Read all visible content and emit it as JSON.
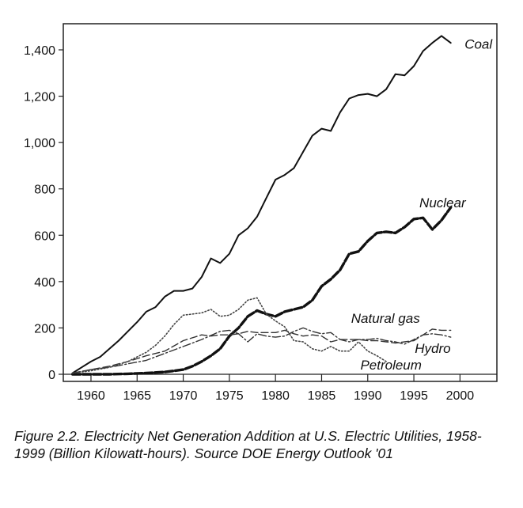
{
  "caption": "Figure 2.2. Electricity Net Generation Addition at U.S. Electric Utilities, 1958-1999 (Billion Kilowatt-hours). Source DOE Energy Outlook '01",
  "chart_data": {
    "type": "line",
    "title": "",
    "xlabel": "",
    "ylabel": "",
    "xlim": [
      1957,
      2004
    ],
    "ylim": [
      0,
      1500
    ],
    "x_ticks": [
      1960,
      1965,
      1970,
      1975,
      1980,
      1985,
      1990,
      1995,
      2000
    ],
    "y_ticks": [
      0,
      200,
      400,
      600,
      800,
      1000,
      1200,
      1400
    ],
    "x_tick_labels": [
      "1960",
      "1965",
      "1970",
      "1975",
      "1980",
      "1985",
      "1990",
      "1995",
      "2000"
    ],
    "y_tick_labels": [
      "0",
      "200",
      "400",
      "600",
      "800",
      "1,000",
      "1,200",
      "1,400"
    ],
    "grid": false,
    "legend": "none (series labeled directly on chart)",
    "series": [
      {
        "name": "Coal",
        "style": "solid",
        "x": [
          1958,
          1959,
          1960,
          1961,
          1962,
          1963,
          1964,
          1965,
          1966,
          1967,
          1968,
          1969,
          1970,
          1971,
          1972,
          1973,
          1974,
          1975,
          1976,
          1977,
          1978,
          1979,
          1980,
          1981,
          1982,
          1983,
          1984,
          1985,
          1986,
          1987,
          1988,
          1989,
          1990,
          1991,
          1992,
          1993,
          1994,
          1995,
          1996,
          1997,
          1998,
          1999
        ],
        "values": [
          5,
          30,
          55,
          75,
          110,
          145,
          185,
          225,
          270,
          290,
          335,
          360,
          360,
          370,
          420,
          500,
          480,
          520,
          600,
          630,
          680,
          760,
          840,
          860,
          890,
          960,
          1030,
          1060,
          1050,
          1130,
          1190,
          1205,
          1210,
          1200,
          1230,
          1295,
          1290,
          1330,
          1395,
          1430,
          1460,
          1430
        ]
      },
      {
        "name": "Nuclear",
        "style": "dashed-bold",
        "x": [
          1958,
          1960,
          1962,
          1964,
          1966,
          1968,
          1969,
          1970,
          1971,
          1972,
          1973,
          1974,
          1975,
          1976,
          1977,
          1978,
          1979,
          1980,
          1981,
          1982,
          1983,
          1984,
          1985,
          1986,
          1987,
          1988,
          1989,
          1990,
          1991,
          1992,
          1993,
          1994,
          1995,
          1996,
          1997,
          1998,
          1999
        ],
        "values": [
          0,
          0,
          0,
          2,
          5,
          10,
          15,
          20,
          35,
          55,
          80,
          110,
          165,
          200,
          250,
          275,
          260,
          250,
          270,
          280,
          290,
          320,
          380,
          410,
          450,
          520,
          530,
          575,
          610,
          615,
          610,
          635,
          670,
          675,
          625,
          665,
          720
        ]
      },
      {
        "name": "Natural gas",
        "style": "dashed",
        "x": [
          1958,
          1960,
          1962,
          1964,
          1966,
          1968,
          1970,
          1972,
          1973,
          1974,
          1975,
          1976,
          1977,
          1978,
          1979,
          1980,
          1981,
          1982,
          1983,
          1984,
          1985,
          1986,
          1987,
          1988,
          1989,
          1990,
          1991,
          1992,
          1993,
          1994,
          1995,
          1996,
          1997,
          1998,
          1999
        ],
        "values": [
          5,
          20,
          35,
          55,
          80,
          100,
          145,
          170,
          165,
          170,
          170,
          175,
          185,
          180,
          180,
          180,
          190,
          175,
          165,
          170,
          165,
          140,
          150,
          150,
          150,
          145,
          145,
          140,
          135,
          140,
          145,
          170,
          195,
          190,
          190
        ]
      },
      {
        "name": "Hydro",
        "style": "dash-dot",
        "x": [
          1958,
          1960,
          1962,
          1964,
          1966,
          1968,
          1970,
          1972,
          1974,
          1975,
          1976,
          1977,
          1978,
          1979,
          1980,
          1981,
          1982,
          1983,
          1984,
          1985,
          1986,
          1987,
          1988,
          1989,
          1990,
          1991,
          1992,
          1993,
          1994,
          1995,
          1996,
          1997,
          1998,
          1999
        ],
        "values": [
          5,
          20,
          30,
          45,
          60,
          90,
          120,
          150,
          185,
          190,
          175,
          140,
          175,
          165,
          160,
          165,
          185,
          200,
          185,
          175,
          180,
          150,
          140,
          150,
          150,
          155,
          145,
          140,
          130,
          150,
          170,
          175,
          170,
          160
        ]
      },
      {
        "name": "Petroleum",
        "style": "dotted",
        "x": [
          1958,
          1960,
          1962,
          1964,
          1966,
          1967,
          1968,
          1969,
          1970,
          1971,
          1972,
          1973,
          1974,
          1975,
          1976,
          1977,
          1978,
          1979,
          1980,
          1981,
          1982,
          1983,
          1984,
          1985,
          1986,
          1987,
          1988,
          1989,
          1990,
          1991,
          1992
        ],
        "values": [
          5,
          15,
          30,
          55,
          95,
          125,
          165,
          215,
          255,
          260,
          265,
          280,
          250,
          255,
          280,
          320,
          330,
          260,
          230,
          205,
          145,
          140,
          110,
          100,
          120,
          100,
          100,
          140,
          100,
          80,
          55
        ]
      }
    ]
  }
}
